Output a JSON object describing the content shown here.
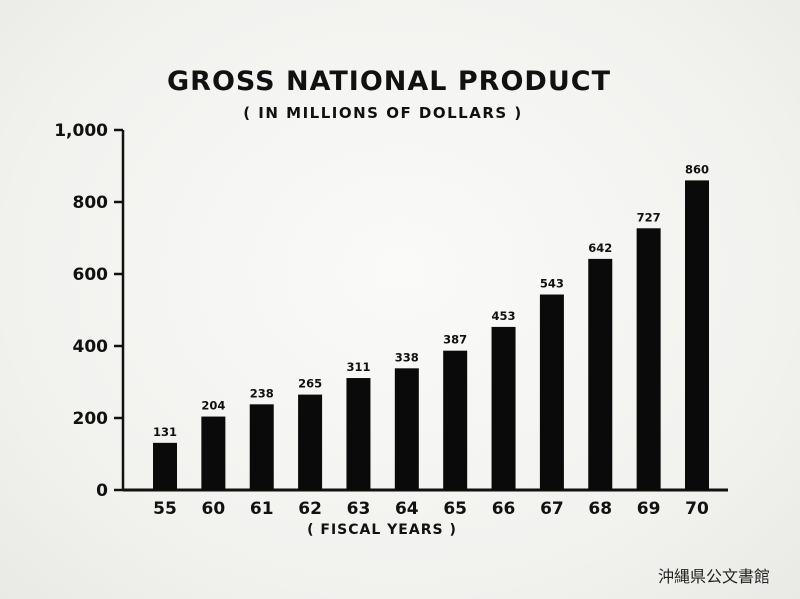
{
  "chart_data": {
    "type": "bar",
    "title": "GROSS NATIONAL PRODUCT",
    "subtitle": "( IN MILLIONS OF DOLLARS )",
    "xlabel": "( FISCAL YEARS )",
    "ylabel": "",
    "categories": [
      "55",
      "60",
      "61",
      "62",
      "63",
      "64",
      "65",
      "66",
      "67",
      "68",
      "69",
      "70"
    ],
    "values": [
      131,
      204,
      238,
      265,
      311,
      338,
      387,
      453,
      543,
      642,
      727,
      860
    ],
    "data_labels": [
      "131",
      "204",
      "238",
      "265",
      "311",
      "338",
      "387",
      "453",
      "543",
      "642",
      "727",
      "860"
    ],
    "ylim": [
      0,
      1000
    ],
    "yticks": [
      0,
      200,
      400,
      600,
      800,
      1000
    ],
    "ytick_labels": [
      "0",
      "200",
      "400",
      "600",
      "800",
      "1,000"
    ],
    "grid": false,
    "bar_color": "#0a0a0a"
  },
  "stamp": "沖縄県公文書館"
}
